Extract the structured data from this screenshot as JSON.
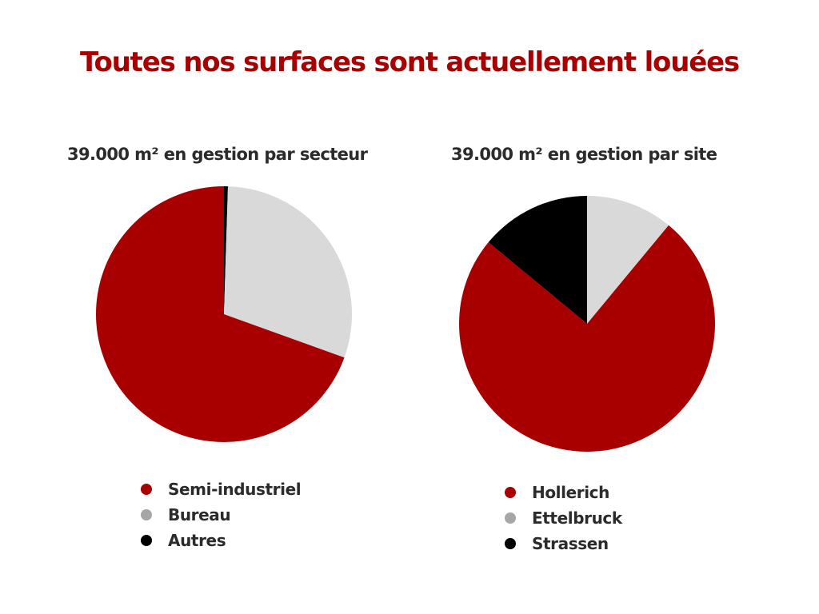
{
  "title": "Toutes nos surfaces sont actuellement louées",
  "chart_data": [
    {
      "type": "pie",
      "title": "39.000 m² en gestion par secteur",
      "categories": [
        "Semi-industriel",
        "Bureau",
        "Autres"
      ],
      "values": [
        69.5,
        30,
        0.5
      ],
      "start_order": [
        "Autres",
        "Bureau",
        "Semi-industriel"
      ],
      "colors": {
        "Semi-industriel": "#a80000",
        "Bureau": "#d9d9d9",
        "Autres": "#000000"
      },
      "legend_colors": {
        "Semi-industriel": "#a80000",
        "Bureau": "#a6a6a6",
        "Autres": "#000000"
      },
      "legend_position": "bottom"
    },
    {
      "type": "pie",
      "title": "39.000 m² en gestion par site",
      "categories": [
        "Hollerich",
        "Ettelbruck",
        "Strassen"
      ],
      "values": [
        75,
        11,
        14
      ],
      "start_order": [
        "Ettelbruck",
        "Hollerich",
        "Strassen"
      ],
      "colors": {
        "Hollerich": "#a80000",
        "Ettelbruck": "#d9d9d9",
        "Strassen": "#000000"
      },
      "legend_colors": {
        "Hollerich": "#a80000",
        "Ettelbruck": "#a6a6a6",
        "Strassen": "#000000"
      },
      "legend_position": "bottom"
    }
  ]
}
